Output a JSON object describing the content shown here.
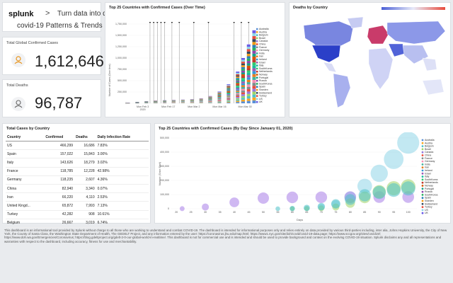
{
  "header": {
    "brand": "splunk",
    "brand_suffix": ">",
    "title_line1": "Turn data into doing",
    "title_line2": "covid-19 Patterns & Trends"
  },
  "kpis": {
    "confirmed_label": "Total Global Confirmed Cases",
    "confirmed_value": "1,612,646",
    "deaths_label": "Total Deaths",
    "deaths_value": "96,787"
  },
  "chart_top": {
    "title": "Top 25 Countries with Confirmed Cases (Over Time)",
    "ylabel": "Number of Cases (Over time)",
    "year": "2020"
  },
  "chart_map": {
    "title": "Deaths by Country"
  },
  "table": {
    "title": "Total Cases by Country",
    "headers": [
      "Country",
      "Confirmed",
      "Deaths",
      "Daily Infection Rate"
    ],
    "rows": [
      [
        "US",
        "466,299",
        "16,686",
        "7.83%"
      ],
      [
        "Spain",
        "157,022",
        "15,843",
        "3.00%"
      ],
      [
        "Italy",
        "143,626",
        "18,279",
        "3.02%"
      ],
      [
        "France",
        "118,785",
        "12,228",
        "42.98%"
      ],
      [
        "Germany",
        "118,235",
        "2,607",
        "4.36%"
      ],
      [
        "China",
        "82,940",
        "3,340",
        "0.07%"
      ],
      [
        "Iran",
        "66,220",
        "4,110",
        "2.53%"
      ],
      [
        "United Kingd...",
        "65,872",
        "7,993",
        "7.13%"
      ],
      [
        "Turkey",
        "42,282",
        "908",
        "10.61%"
      ],
      [
        "Belgium",
        "26,667",
        "3,019",
        "6.74%"
      ]
    ]
  },
  "chart_bottom": {
    "title": "Top 25 Countries with Confirmed Cases (By Day Since January 01, 2020)",
    "xlabel": "Days",
    "ylabel": "Number (Since Start)"
  },
  "legend": [
    "Australia",
    "Austria",
    "Belgium",
    "Brazil",
    "Canada",
    "China",
    "France",
    "Germany",
    "India",
    "Iran",
    "Ireland",
    "Israel",
    "Italy",
    "SouthKorea",
    "Netherlands",
    "Norway",
    "Portugal",
    "Russia",
    "SouthKorea",
    "Spain",
    "Sweden",
    "Switzerland",
    "Turkey",
    "US",
    "UK"
  ],
  "legend_colors": [
    "#5a8fd6",
    "#f5a623",
    "#4fc1c8",
    "#a0d468",
    "#967adc",
    "#e84c3d",
    "#7f8c8d",
    "#f78fb3",
    "#45b29d",
    "#e67e22",
    "#3498db",
    "#9b59b6",
    "#1abc9c",
    "#2ecc71",
    "#c0392b",
    "#d35400",
    "#16a085",
    "#8e44ad",
    "#27ae60",
    "#2980b9",
    "#f39c12",
    "#34495e",
    "#e74c3c",
    "#8fd6e8",
    "#6c5ce7"
  ],
  "chart_data": [
    {
      "type": "area",
      "title": "Top 25 Countries with Confirmed Cases (Over Time)",
      "ylabel": "Number of Cases (Over time)",
      "x_ticks": [
        "Mon Feb 3\n2020",
        "Mon Feb 17",
        "Mon Mar 2",
        "Mon Mar 16",
        "Mon Mar 30"
      ],
      "y_ticks": [
        0,
        250000,
        500000,
        750000,
        1000000,
        1250000,
        1500000,
        1750000
      ],
      "ylim": [
        0,
        1750000
      ],
      "x_index": [
        0,
        5,
        10,
        15,
        20,
        25,
        30,
        35,
        40,
        45,
        50,
        55,
        60,
        63,
        66,
        69
      ],
      "total": [
        10000,
        30000,
        45000,
        60000,
        68000,
        75000,
        82000,
        92000,
        110000,
        160000,
        260000,
        420000,
        700000,
        1000000,
        1300000,
        1612646
      ]
    },
    {
      "type": "scatter",
      "title": "Top 25 Countries with Confirmed Cases (By Day Since January 01, 2020)",
      "xlabel": "Days",
      "ylabel": "Number (Since Start)",
      "x_ticks": [
        20,
        25,
        30,
        35,
        40,
        45,
        50,
        55,
        60,
        65,
        70,
        75,
        80,
        85,
        90,
        95,
        100
      ],
      "y_ticks": [
        0,
        100000,
        200000,
        300000,
        400000,
        500000
      ],
      "xlim": [
        18,
        103
      ],
      "ylim": [
        0,
        500000
      ],
      "series": [
        {
          "name": "US",
          "x": [
            60,
            65,
            70,
            75,
            80,
            85,
            90,
            95,
            100
          ],
          "y": [
            500,
            2000,
            10000,
            30000,
            80000,
            160000,
            250000,
            350000,
            466299
          ]
        },
        {
          "name": "China",
          "x": [
            22,
            30,
            40,
            50,
            60,
            70,
            80,
            90,
            100
          ],
          "y": [
            600,
            12000,
            45000,
            75000,
            80000,
            81000,
            82000,
            82500,
            82940
          ]
        },
        {
          "name": "Spain",
          "x": [
            60,
            65,
            70,
            75,
            80,
            85,
            90,
            95,
            100
          ],
          "y": [
            100,
            500,
            3000,
            12000,
            40000,
            80000,
            120000,
            145000,
            157022
          ]
        },
        {
          "name": "Italy",
          "x": [
            55,
            60,
            65,
            70,
            75,
            80,
            85,
            90,
            95,
            100
          ],
          "y": [
            200,
            1500,
            6000,
            15000,
            35000,
            65000,
            95000,
            115000,
            132000,
            143626
          ]
        }
      ]
    }
  ],
  "disclaimer": "This dashboard is an informational tool provided by Splunk without charge to all those who are working to understand and combat COVID-19. The dashboard is intended for informational purposes only and relies entirely on data provided by various third-parties including, inter alia, Johns Hopkins University, the City of New York, the County of Santa Clara, the Washington State Department of Health, The GEDELT Project, and any information entered by the user: https://coronavirus.jhu.edu/map.html; https://www1.nyc.gov/site/doh/covid/covid-19-data.page; https://www.sccgov.org/sites/covid19/; https://www.doh.wa.gov/Emergencies/Coronavirus; https://blog.gdeltproject.org/gdelt-2-0-our-global-world-in-realtime/. This dashboard is not for commercial use and is intended and should be used to provide background and context on the evolving COVID-19 situation. Splunk disclaims any and all representations and warranties with respect to the dashboard, including accuracy, fitness for use and merchantability."
}
